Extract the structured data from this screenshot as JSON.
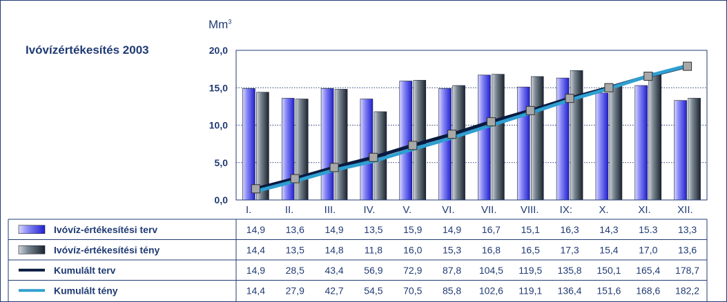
{
  "title": "Ivóvízértékesítés 2003",
  "unit": "Mm",
  "unit_sup": "3",
  "chart_data": {
    "type": "bar",
    "categories": [
      "I.",
      "II.",
      "III.",
      "IV.",
      "V.",
      "VI.",
      "VII.",
      "VIII.",
      "IX:",
      "X.",
      "XI.",
      "XII."
    ],
    "ylim": [
      0,
      20
    ],
    "yticks": [
      "0,0",
      "5,0",
      "10,0",
      "15,0",
      "20,0"
    ],
    "grid": true,
    "series": [
      {
        "name": "Ivóvíz-értékesítési terv",
        "kind": "bar",
        "color": "#5b5bf0",
        "values": [
          14.9,
          13.6,
          14.9,
          13.5,
          15.9,
          14.9,
          16.7,
          15.1,
          16.3,
          14.3,
          15.3,
          13.3
        ],
        "labels": [
          "14,9",
          "13,6",
          "14,9",
          "13,5",
          "15,9",
          "14,9",
          "16,7",
          "15,1",
          "16,3",
          "14,3",
          "15.3",
          "13,3"
        ]
      },
      {
        "name": "Ivóvíz-értékesítési tény",
        "kind": "bar",
        "color": "#4a5560",
        "values": [
          14.4,
          13.5,
          14.8,
          11.8,
          16.0,
          15.3,
          16.8,
          16.5,
          17.3,
          15.4,
          17.0,
          13.6
        ],
        "labels": [
          "14,4",
          "13,5",
          "14,8",
          "11,8",
          "16,0",
          "15,3",
          "16,8",
          "16,5",
          "17,3",
          "15,4",
          "17,0",
          "13,6"
        ]
      },
      {
        "name": "Kumulált terv",
        "kind": "line",
        "color": "#0a1a40",
        "values": [
          14.9,
          28.5,
          43.4,
          56.9,
          72.9,
          87.8,
          104.5,
          119.5,
          135.8,
          150.1,
          165.4,
          178.7
        ],
        "labels": [
          "14,9",
          "28,5",
          "43,4",
          "56,9",
          "72,9",
          "87,8",
          "104,5",
          "119,5",
          "135,8",
          "150,1",
          "165,4",
          "178,7"
        ]
      },
      {
        "name": "Kumulált tény",
        "kind": "line",
        "color": "#2e9fd0",
        "values": [
          14.4,
          27.9,
          42.7,
          54.5,
          70.5,
          85.8,
          102.6,
          119.1,
          136.4,
          151.6,
          168.6,
          182.2
        ],
        "labels": [
          "14,4",
          "27,9",
          "42,7",
          "54,5",
          "70,5",
          "85,8",
          "102,6",
          "119,1",
          "136,4",
          "151,6",
          "168,6",
          "182,2"
        ]
      }
    ]
  }
}
